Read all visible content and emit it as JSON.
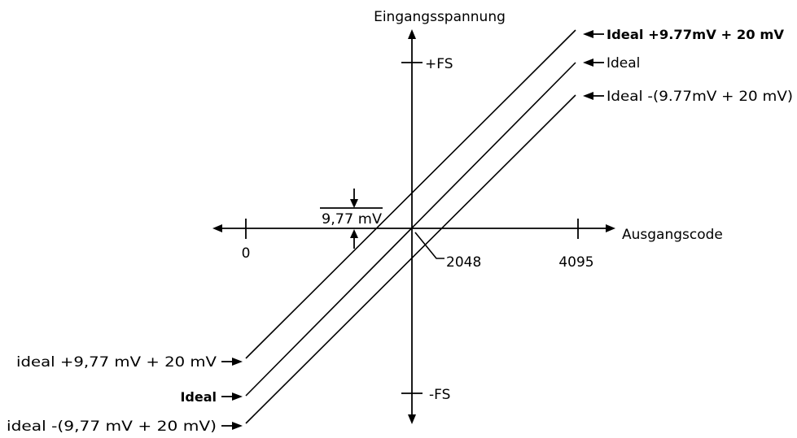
{
  "axes": {
    "y_title": "Eingangsspannung",
    "x_title": "Ausgangscode",
    "y_pos_label": "+FS",
    "y_neg_label": "-FS",
    "x_tick_0": "0",
    "x_tick_mid": "2048",
    "x_tick_max": "4095"
  },
  "offset_marker": {
    "label": "9,77 mV"
  },
  "lines": {
    "upper_right": "Ideal +9.77mV + 20 mV",
    "ideal_right": "Ideal",
    "lower_right": "Ideal -(9.77mV + 20 mV)",
    "upper_left": "ideal +9,77 mV + 20 mV",
    "ideal_left": "Ideal",
    "lower_left": "ideal -(9,77 mV + 20 mV)"
  },
  "colors": {
    "ink": "#000000",
    "background": "#ffffff"
  }
}
